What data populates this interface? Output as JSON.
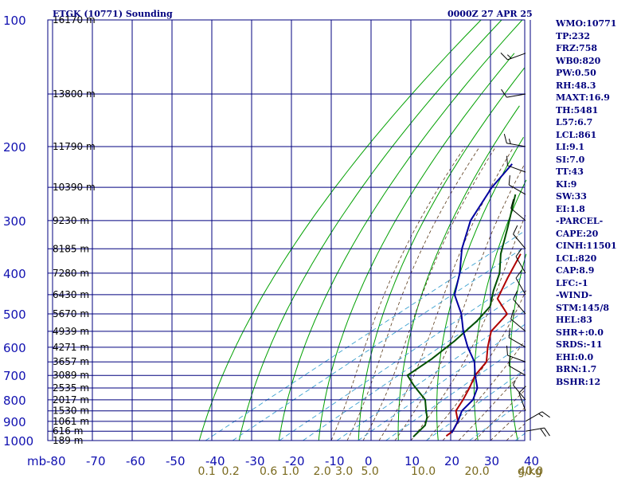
{
  "header": {
    "station": "ETGK (10771) Sounding",
    "time": "0000Z 27 APR 25"
  },
  "stats": [
    "WMO:10771",
    "TP:232",
    "FRZ:758",
    "WB0:820",
    "PW:0.50",
    "RH:48.3",
    "MAXT:16.9",
    "TH:5481",
    "L57:6.7",
    "LCL:861",
    "LI:9.1",
    "SI:7.0",
    "TT:43",
    "KI:9",
    "SW:33",
    "EI:1.8",
    "-PARCEL-",
    "CAPE:20",
    "CINH:11501",
    "LCL:820",
    "CAP:8.9",
    "LFC:-1",
    "-WIND-",
    "STM:145/8",
    "HEL:83",
    "SHR+:0.0",
    "SRDS:-11",
    "EHI:0.0",
    "BRN:1.7",
    "BSHR:12"
  ],
  "colors": {
    "grid": "#00007f",
    "dry_adiabat": "#00a000",
    "moist_adiabat": "#5a3a1a",
    "mixing_ratio": "#3aa0d0",
    "temperature": "#b00000",
    "dewpoint": "#005000",
    "parcel": "#0000a0",
    "wind": "#000000"
  },
  "chart_data": {
    "type": "line",
    "title": "ETGK (10771) Sounding",
    "pressure_unit_label": "mb",
    "mixing_ratio_unit": "g/kg",
    "ylim": [
      1000,
      100
    ],
    "xlim": [
      -80,
      40
    ],
    "pressure_levels": [
      100,
      200,
      300,
      400,
      500,
      600,
      700,
      800,
      900,
      1000
    ],
    "height_labels": [
      {
        "p": 100,
        "label": "16170 m"
      },
      {
        "p": 150,
        "label": "13800 m"
      },
      {
        "p": 200,
        "label": "11790 m"
      },
      {
        "p": 250,
        "label": "10390 m"
      },
      {
        "p": 300,
        "label": "9230 m"
      },
      {
        "p": 350,
        "label": "8185 m"
      },
      {
        "p": 400,
        "label": "7280 m"
      },
      {
        "p": 450,
        "label": "6430 m"
      },
      {
        "p": 500,
        "label": "5670 m"
      },
      {
        "p": 550,
        "label": "4939 m"
      },
      {
        "p": 600,
        "label": "4271 m"
      },
      {
        "p": 650,
        "label": "3657 m"
      },
      {
        "p": 700,
        "label": "3089 m"
      },
      {
        "p": 750,
        "label": "2535 m"
      },
      {
        "p": 800,
        "label": "2017 m"
      },
      {
        "p": 850,
        "label": "1530 m"
      },
      {
        "p": 900,
        "label": "1061 m"
      },
      {
        "p": 950,
        "label": "616 m"
      },
      {
        "p": 1000,
        "label": "189 m"
      }
    ],
    "temperature_ticks": [
      -80,
      -70,
      -60,
      -50,
      -40,
      -30,
      -20,
      -10,
      0,
      10,
      20,
      30,
      40
    ],
    "mixing_ratio_ticks": [
      {
        "w": "0.1",
        "t": -41.5
      },
      {
        "w": "0.2",
        "t": -35.5
      },
      {
        "w": "0.6",
        "t": -26.0
      },
      {
        "w": "1.0",
        "t": -20.5
      },
      {
        "w": "2.0",
        "t": -12.5
      },
      {
        "w": "3.0",
        "t": -7.0
      },
      {
        "w": "5.0",
        "t": -0.5
      },
      {
        "w": "10.0",
        "t": 12.0
      },
      {
        "w": "20.0",
        "t": 25.5
      },
      {
        "w": "40.0",
        "t": 39.0
      }
    ],
    "series": [
      {
        "key": "temperature",
        "points": [
          [
            -58,
            100
          ],
          [
            -58.5,
            110
          ],
          [
            -58,
            150
          ],
          [
            -59,
            190
          ],
          [
            -59.5,
            210
          ],
          [
            -58.5,
            230
          ],
          [
            -56,
            250
          ],
          [
            -53,
            280
          ],
          [
            -51,
            300
          ],
          [
            -43,
            360
          ],
          [
            -36,
            410
          ],
          [
            -29.5,
            460
          ],
          [
            -20.5,
            500
          ],
          [
            -17,
            550
          ],
          [
            -11,
            600
          ],
          [
            -5,
            650
          ],
          [
            -2,
            700
          ],
          [
            2,
            750
          ],
          [
            5.5,
            800
          ],
          [
            8.5,
            850
          ],
          [
            13.5,
            900
          ],
          [
            16.5,
            950
          ],
          [
            16.9,
            975
          ]
        ]
      },
      {
        "key": "dewpoint",
        "points": [
          [
            -82,
            180
          ],
          [
            -79,
            220
          ],
          [
            -70,
            260
          ],
          [
            -58,
            310
          ],
          [
            -48,
            360
          ],
          [
            -40,
            400
          ],
          [
            -34,
            440
          ],
          [
            -28,
            480
          ],
          [
            -25,
            520
          ],
          [
            -22,
            580
          ],
          [
            -20,
            640
          ],
          [
            -19,
            700
          ],
          [
            -13,
            740
          ],
          [
            -4,
            800
          ],
          [
            1,
            850
          ],
          [
            4,
            880
          ],
          [
            7,
            920
          ],
          [
            9,
            980
          ]
        ]
      },
      {
        "key": "parcel",
        "points": [
          [
            -84,
            220
          ],
          [
            -79,
            250
          ],
          [
            -70,
            300
          ],
          [
            -60,
            350
          ],
          [
            -50,
            400
          ],
          [
            -42,
            450
          ],
          [
            -32,
            500
          ],
          [
            -24,
            550
          ],
          [
            -16,
            600
          ],
          [
            -8,
            650
          ],
          [
            -2,
            700
          ],
          [
            4,
            750
          ],
          [
            8,
            800
          ],
          [
            10,
            850
          ],
          [
            13.5,
            900
          ],
          [
            17,
            960
          ]
        ]
      }
    ],
    "wind_barbs": [
      {
        "p": 120,
        "dir": 250,
        "kt": 15
      },
      {
        "p": 150,
        "dir": 260,
        "kt": 10
      },
      {
        "p": 200,
        "dir": 280,
        "kt": 15
      },
      {
        "p": 230,
        "dir": 290,
        "kt": 10
      },
      {
        "p": 260,
        "dir": 300,
        "kt": 10
      },
      {
        "p": 300,
        "dir": 310,
        "kt": 10
      },
      {
        "p": 350,
        "dir": 320,
        "kt": 10
      },
      {
        "p": 400,
        "dir": 330,
        "kt": 10
      },
      {
        "p": 450,
        "dir": 330,
        "kt": 10
      },
      {
        "p": 500,
        "dir": 320,
        "kt": 10
      },
      {
        "p": 550,
        "dir": 310,
        "kt": 10
      },
      {
        "p": 600,
        "dir": 300,
        "kt": 10
      },
      {
        "p": 650,
        "dir": 290,
        "kt": 10
      },
      {
        "p": 700,
        "dir": 300,
        "kt": 10
      },
      {
        "p": 800,
        "dir": 320,
        "kt": 5
      },
      {
        "p": 850,
        "dir": 340,
        "kt": 10
      },
      {
        "p": 900,
        "dir": 60,
        "kt": 15
      },
      {
        "p": 950,
        "dir": 80,
        "kt": 20
      }
    ]
  }
}
